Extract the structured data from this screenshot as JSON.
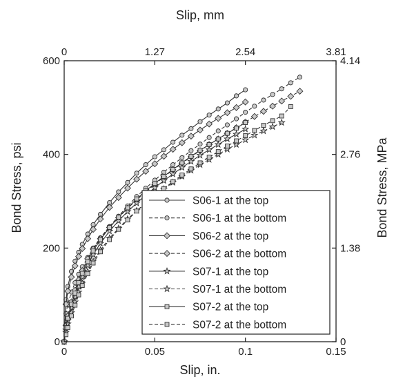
{
  "chart_data": {
    "type": "line",
    "top_axis": {
      "label": "Slip, mm",
      "ticks": [
        "0",
        "1.27",
        "2.54",
        "3.81"
      ]
    },
    "bottom_axis": {
      "label": "Slip, in.",
      "ticks": [
        "0",
        "0.05",
        "0.1",
        "0.15"
      ],
      "range": [
        0,
        0.15
      ]
    },
    "left_axis": {
      "label": "Bond Stress, psi",
      "ticks": [
        "0",
        "200",
        "400",
        "600"
      ],
      "range": [
        0,
        600
      ]
    },
    "right_axis": {
      "label": "Bond Stress, MPa",
      "ticks": [
        "0",
        "1.38",
        "2.76",
        "4.14"
      ]
    },
    "grid": false,
    "legend_position": "bottom-right",
    "series": [
      {
        "name": "S06-1 at the top",
        "marker": "circle",
        "line": "solid",
        "points": [
          [
            0,
            0
          ],
          [
            0.001,
            90
          ],
          [
            0.002,
            118
          ],
          [
            0.004,
            150
          ],
          [
            0.006,
            172
          ],
          [
            0.008,
            191
          ],
          [
            0.01,
            208
          ],
          [
            0.013,
            230
          ],
          [
            0.016,
            250
          ],
          [
            0.02,
            272
          ],
          [
            0.025,
            297
          ],
          [
            0.03,
            320
          ],
          [
            0.035,
            340
          ],
          [
            0.04,
            360
          ],
          [
            0.045,
            378
          ],
          [
            0.05,
            395
          ],
          [
            0.055,
            410
          ],
          [
            0.06,
            426
          ],
          [
            0.065,
            441
          ],
          [
            0.07,
            455
          ],
          [
            0.075,
            470
          ],
          [
            0.08,
            484
          ],
          [
            0.085,
            497
          ],
          [
            0.09,
            510
          ],
          [
            0.095,
            525
          ],
          [
            0.1,
            538
          ]
        ]
      },
      {
        "name": "S06-1 at the bottom",
        "marker": "circle",
        "line": "dashed",
        "points": [
          [
            0,
            0
          ],
          [
            0.001,
            60
          ],
          [
            0.002,
            80
          ],
          [
            0.004,
            106
          ],
          [
            0.006,
            126
          ],
          [
            0.008,
            144
          ],
          [
            0.01,
            160
          ],
          [
            0.013,
            180
          ],
          [
            0.016,
            200
          ],
          [
            0.02,
            222
          ],
          [
            0.025,
            246
          ],
          [
            0.03,
            268
          ],
          [
            0.035,
            290
          ],
          [
            0.04,
            310
          ],
          [
            0.045,
            328
          ],
          [
            0.05,
            345
          ],
          [
            0.055,
            362
          ],
          [
            0.06,
            378
          ],
          [
            0.065,
            393
          ],
          [
            0.07,
            408
          ],
          [
            0.075,
            422
          ],
          [
            0.08,
            436
          ],
          [
            0.085,
            450
          ],
          [
            0.09,
            463
          ],
          [
            0.095,
            476
          ],
          [
            0.1,
            490
          ],
          [
            0.105,
            503
          ],
          [
            0.11,
            516
          ],
          [
            0.115,
            528
          ],
          [
            0.12,
            540
          ],
          [
            0.125,
            553
          ],
          [
            0.13,
            565
          ]
        ]
      },
      {
        "name": "S06-2 at the top",
        "marker": "diamond",
        "line": "solid",
        "points": [
          [
            0,
            0
          ],
          [
            0.001,
            80
          ],
          [
            0.002,
            108
          ],
          [
            0.004,
            138
          ],
          [
            0.006,
            162
          ],
          [
            0.008,
            182
          ],
          [
            0.01,
            199
          ],
          [
            0.013,
            220
          ],
          [
            0.016,
            240
          ],
          [
            0.02,
            262
          ],
          [
            0.025,
            287
          ],
          [
            0.03,
            308
          ],
          [
            0.035,
            328
          ],
          [
            0.04,
            347
          ],
          [
            0.045,
            364
          ],
          [
            0.05,
            380
          ],
          [
            0.055,
            396
          ],
          [
            0.06,
            411
          ],
          [
            0.065,
            425
          ],
          [
            0.07,
            439
          ],
          [
            0.075,
            452
          ],
          [
            0.08,
            465
          ],
          [
            0.085,
            477
          ],
          [
            0.09,
            489
          ],
          [
            0.095,
            500
          ],
          [
            0.1,
            512
          ]
        ]
      },
      {
        "name": "S06-2 at the bottom",
        "marker": "diamond",
        "line": "dashed",
        "points": [
          [
            0,
            0
          ],
          [
            0.001,
            35
          ],
          [
            0.002,
            55
          ],
          [
            0.004,
            85
          ],
          [
            0.006,
            110
          ],
          [
            0.008,
            132
          ],
          [
            0.01,
            152
          ],
          [
            0.013,
            177
          ],
          [
            0.016,
            198
          ],
          [
            0.02,
            220
          ],
          [
            0.025,
            244
          ],
          [
            0.03,
            265
          ],
          [
            0.035,
            285
          ],
          [
            0.04,
            303
          ],
          [
            0.045,
            320
          ],
          [
            0.05,
            336
          ],
          [
            0.055,
            352
          ],
          [
            0.06,
            367
          ],
          [
            0.065,
            381
          ],
          [
            0.07,
            395
          ],
          [
            0.075,
            408
          ],
          [
            0.08,
            421
          ],
          [
            0.085,
            433
          ],
          [
            0.09,
            445
          ],
          [
            0.095,
            457
          ],
          [
            0.1,
            469
          ],
          [
            0.105,
            481
          ],
          [
            0.11,
            492
          ],
          [
            0.115,
            503
          ],
          [
            0.12,
            514
          ],
          [
            0.125,
            524
          ],
          [
            0.13,
            535
          ]
        ]
      },
      {
        "name": "S07-1 at the top",
        "marker": "star",
        "line": "solid",
        "points": [
          [
            0,
            0
          ],
          [
            0.001,
            25
          ],
          [
            0.002,
            45
          ],
          [
            0.004,
            72
          ],
          [
            0.006,
            96
          ],
          [
            0.008,
            118
          ],
          [
            0.01,
            138
          ],
          [
            0.013,
            163
          ],
          [
            0.016,
            186
          ],
          [
            0.02,
            210
          ],
          [
            0.025,
            236
          ],
          [
            0.03,
            258
          ],
          [
            0.035,
            278
          ],
          [
            0.04,
            296
          ],
          [
            0.045,
            313
          ],
          [
            0.05,
            329
          ],
          [
            0.055,
            344
          ],
          [
            0.06,
            358
          ],
          [
            0.065,
            372
          ],
          [
            0.07,
            385
          ],
          [
            0.075,
            398
          ],
          [
            0.08,
            410
          ],
          [
            0.085,
            421
          ],
          [
            0.09,
            433
          ],
          [
            0.095,
            443
          ],
          [
            0.1,
            454
          ]
        ]
      },
      {
        "name": "S07-1 at the bottom",
        "marker": "star",
        "line": "dashed",
        "points": [
          [
            0,
            0
          ],
          [
            0.001,
            20
          ],
          [
            0.002,
            38
          ],
          [
            0.004,
            62
          ],
          [
            0.006,
            85
          ],
          [
            0.008,
            106
          ],
          [
            0.01,
            125
          ],
          [
            0.013,
            150
          ],
          [
            0.016,
            172
          ],
          [
            0.02,
            196
          ],
          [
            0.025,
            221
          ],
          [
            0.03,
            242
          ],
          [
            0.035,
            262
          ],
          [
            0.04,
            280
          ],
          [
            0.045,
            296
          ],
          [
            0.05,
            311
          ],
          [
            0.055,
            326
          ],
          [
            0.06,
            340
          ],
          [
            0.065,
            353
          ],
          [
            0.07,
            366
          ],
          [
            0.075,
            378
          ],
          [
            0.08,
            389
          ],
          [
            0.085,
            400
          ],
          [
            0.09,
            411
          ],
          [
            0.095,
            421
          ],
          [
            0.1,
            431
          ],
          [
            0.105,
            441
          ],
          [
            0.11,
            450
          ],
          [
            0.115,
            459
          ],
          [
            0.12,
            468
          ]
        ]
      },
      {
        "name": "S07-2 at the top",
        "marker": "square",
        "line": "solid",
        "points": [
          [
            0,
            0
          ],
          [
            0.001,
            30
          ],
          [
            0.002,
            50
          ],
          [
            0.004,
            80
          ],
          [
            0.006,
            104
          ],
          [
            0.008,
            126
          ],
          [
            0.01,
            146
          ],
          [
            0.013,
            171
          ],
          [
            0.016,
            194
          ],
          [
            0.02,
            218
          ],
          [
            0.025,
            244
          ],
          [
            0.03,
            266
          ],
          [
            0.035,
            286
          ],
          [
            0.04,
            305
          ],
          [
            0.045,
            322
          ],
          [
            0.05,
            338
          ],
          [
            0.055,
            353
          ],
          [
            0.06,
            368
          ],
          [
            0.065,
            382
          ],
          [
            0.07,
            396
          ],
          [
            0.075,
            409
          ],
          [
            0.08,
            421
          ],
          [
            0.085,
            433
          ],
          [
            0.09,
            445
          ],
          [
            0.095,
            456
          ],
          [
            0.1,
            468
          ]
        ]
      },
      {
        "name": "S07-2 at the bottom",
        "marker": "square",
        "line": "dashed",
        "points": [
          [
            0,
            0
          ],
          [
            0.001,
            15
          ],
          [
            0.002,
            30
          ],
          [
            0.004,
            55
          ],
          [
            0.006,
            78
          ],
          [
            0.008,
            100
          ],
          [
            0.01,
            120
          ],
          [
            0.013,
            145
          ],
          [
            0.016,
            168
          ],
          [
            0.02,
            192
          ],
          [
            0.025,
            218
          ],
          [
            0.03,
            240
          ],
          [
            0.035,
            260
          ],
          [
            0.04,
            279
          ],
          [
            0.045,
            296
          ],
          [
            0.05,
            312
          ],
          [
            0.055,
            327
          ],
          [
            0.06,
            342
          ],
          [
            0.065,
            356
          ],
          [
            0.07,
            369
          ],
          [
            0.075,
            382
          ],
          [
            0.08,
            394
          ],
          [
            0.085,
            406
          ],
          [
            0.09,
            418
          ],
          [
            0.095,
            429
          ],
          [
            0.1,
            440
          ],
          [
            0.105,
            451
          ],
          [
            0.11,
            462
          ],
          [
            0.115,
            472
          ],
          [
            0.12,
            482
          ],
          [
            0.125,
            502
          ]
        ]
      }
    ]
  }
}
